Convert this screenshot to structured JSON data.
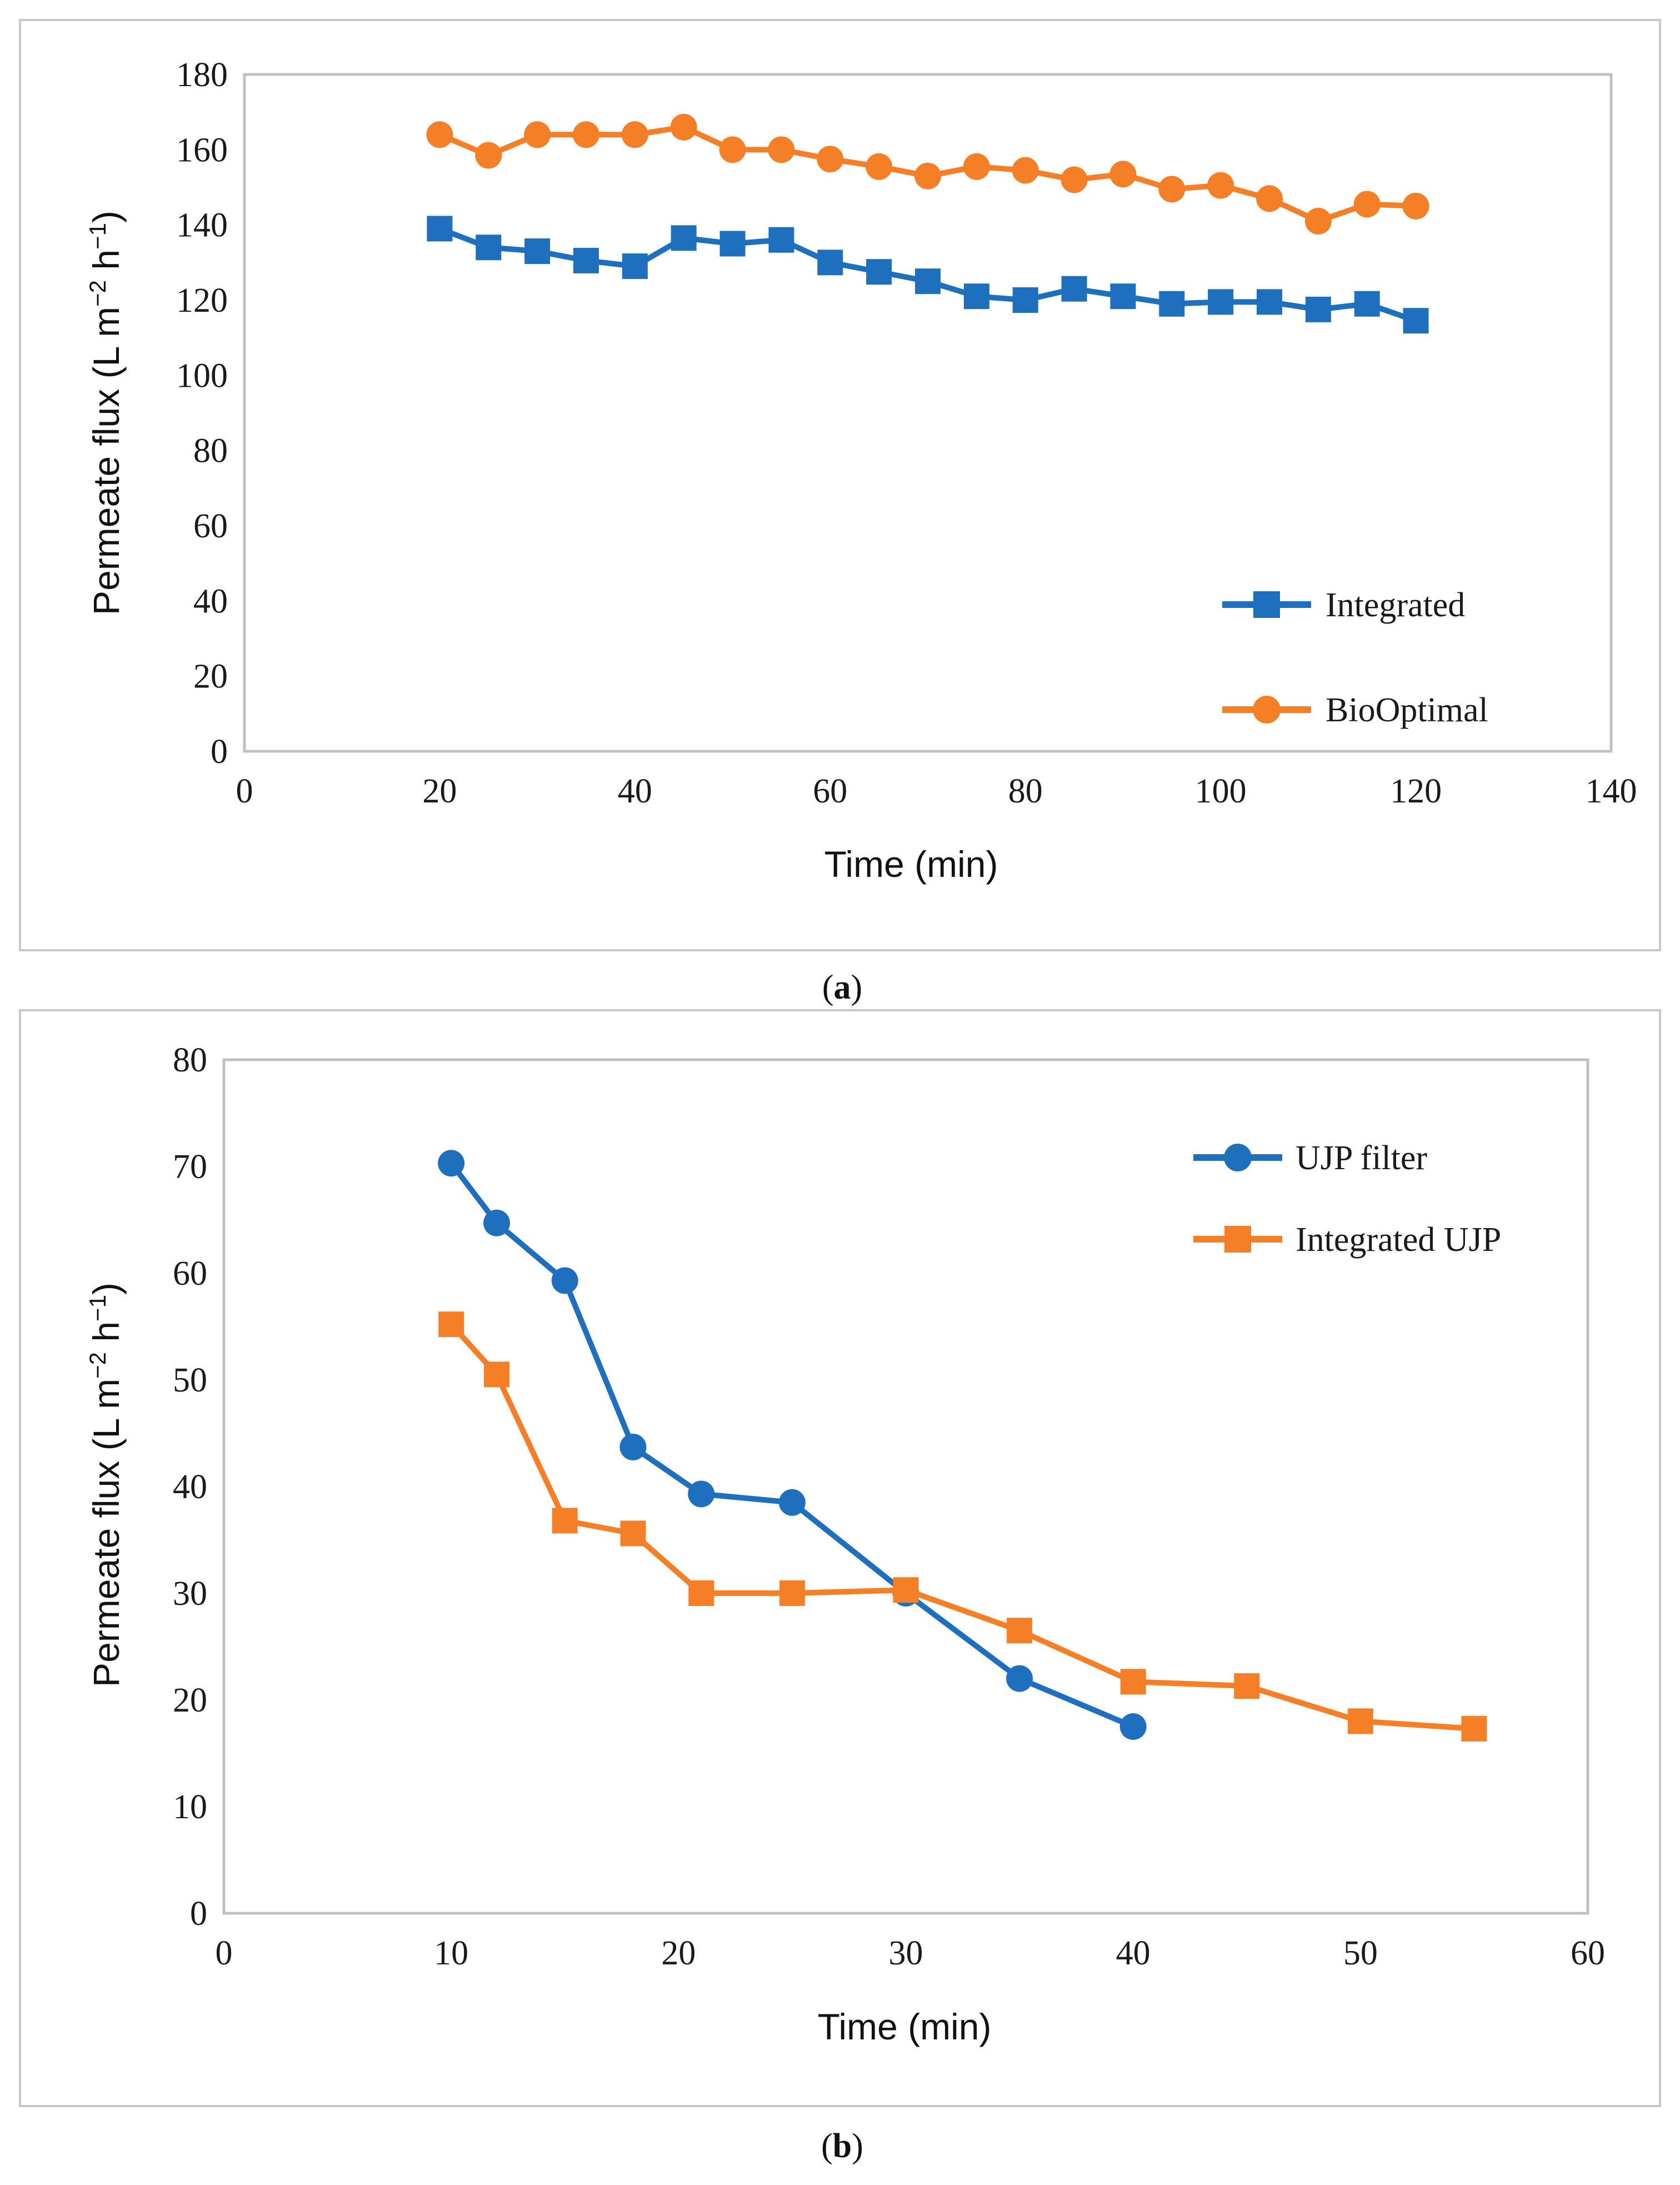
{
  "chart_data": [
    {
      "type": "line",
      "panel_label": "a",
      "title": "",
      "xlabel": "Time (min)",
      "ylabel_main": "Permeate flux (L m",
      "ylabel_sup1": "−2",
      "ylabel_mid": " h",
      "ylabel_sup2": "−1",
      "ylabel_end": ")",
      "xlim": [
        0,
        140
      ],
      "ylim": [
        0,
        180
      ],
      "xticks": [
        0,
        20,
        40,
        60,
        80,
        100,
        120,
        140
      ],
      "yticks": [
        0,
        20,
        40,
        60,
        80,
        100,
        120,
        140,
        160,
        180
      ],
      "grid": false,
      "legend_position": "bottom-right",
      "series": [
        {
          "name": "Integrated",
          "color": "#1f6fbf",
          "marker": "square",
          "x": [
            20,
            25,
            30,
            35,
            40,
            45,
            50,
            55,
            60,
            65,
            70,
            75,
            80,
            85,
            90,
            95,
            100,
            105,
            110,
            115,
            120
          ],
          "values": [
            139,
            134,
            133,
            130.5,
            129,
            136.5,
            135,
            136,
            130,
            127.5,
            125,
            121,
            120,
            123,
            121,
            119,
            119.5,
            119.5,
            117.5,
            119,
            114.5
          ]
        },
        {
          "name": "BioOptimal",
          "color": "#f47f27",
          "marker": "circle",
          "x": [
            20,
            25,
            30,
            35,
            40,
            45,
            50,
            55,
            60,
            65,
            70,
            75,
            80,
            85,
            90,
            95,
            100,
            105,
            110,
            115,
            120
          ],
          "values": [
            164,
            158.5,
            164,
            164,
            164,
            166,
            160,
            160,
            157.5,
            155.5,
            153,
            155.5,
            154.5,
            152,
            153.5,
            149.5,
            150.5,
            147,
            141,
            145.5,
            145
          ]
        }
      ]
    },
    {
      "type": "line",
      "panel_label": "b",
      "title": "",
      "xlabel": "Time (min)",
      "ylabel_main": "Permeate flux (L m",
      "ylabel_sup1": "−2",
      "ylabel_mid": " h",
      "ylabel_sup2": "−1",
      "ylabel_end": ")",
      "xlim": [
        0,
        60
      ],
      "ylim": [
        0,
        80
      ],
      "xticks": [
        0,
        10,
        20,
        30,
        40,
        50,
        60
      ],
      "yticks": [
        0,
        10,
        20,
        30,
        40,
        50,
        60,
        70,
        80
      ],
      "grid": false,
      "legend_position": "top-right",
      "series": [
        {
          "name": "UJP filter",
          "color": "#1f6fbf",
          "marker": "circle",
          "x": [
            10,
            12,
            15,
            18,
            21,
            25,
            30,
            35,
            40
          ],
          "values": [
            70.3,
            64.7,
            59.3,
            43.7,
            39.3,
            38.5,
            30,
            22,
            17.5
          ]
        },
        {
          "name": "Integrated UJP",
          "color": "#f47f27",
          "marker": "square",
          "x": [
            10,
            12,
            15,
            18,
            21,
            25,
            30,
            35,
            40,
            45,
            50,
            55
          ],
          "values": [
            55.2,
            50.5,
            36.8,
            35.6,
            30,
            30,
            30.3,
            26.5,
            21.7,
            21.3,
            18,
            17.3
          ]
        }
      ]
    }
  ]
}
